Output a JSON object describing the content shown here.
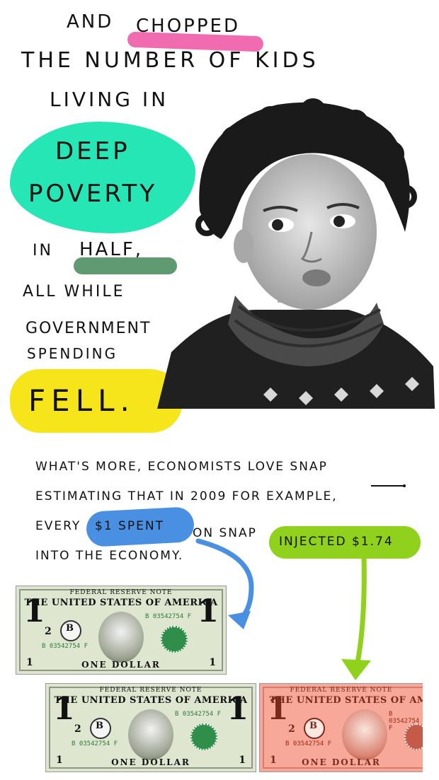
{
  "lines": {
    "and": "AND",
    "chopped": "CHOPPED",
    "number_of_kids": "THE NUMBER OF KIDS",
    "living_in": "LIVING IN",
    "deep": "DEEP",
    "poverty": "POVERTY",
    "in": "IN",
    "half": "HALF,",
    "all_while": "ALL WHILE",
    "government": "GOVERNMENT",
    "spending": "SPENDING",
    "fell": "FELL."
  },
  "paragraph": {
    "line1": "WHAT'S MORE, ECONOMISTS LOVE SNAP",
    "line2": "ESTIMATING THAT IN 2009 FOR EXAMPLE,",
    "line3_a": "EVERY",
    "dollar_spent": "$1 SPENT",
    "line3_b": "ON SNAP",
    "injected": "INJECTED $1.74",
    "line4": "INTO THE ECONOMY."
  },
  "bill": {
    "header": "FEDERAL RESERVE NOTE",
    "title": "THE UNITED STATES OF AMERICA",
    "serial": "B 03542754 F",
    "denomination": "1",
    "letter": "B",
    "footer": "ONE DOLLAR",
    "small_number": "2"
  },
  "colors": {
    "teal": "#26e6b6",
    "pink": "#f06bb0",
    "green_dark": "#5f9a73",
    "yellow": "#f7e51b",
    "blue": "#4a90e2",
    "lime": "#8fd11c",
    "bill_green": "#dfe6cf",
    "bill_red": "#f7a898"
  },
  "images": {
    "child_photo": "child-photo",
    "arrow_blue": "arrow-icon",
    "arrow_lime": "arrow-icon"
  }
}
